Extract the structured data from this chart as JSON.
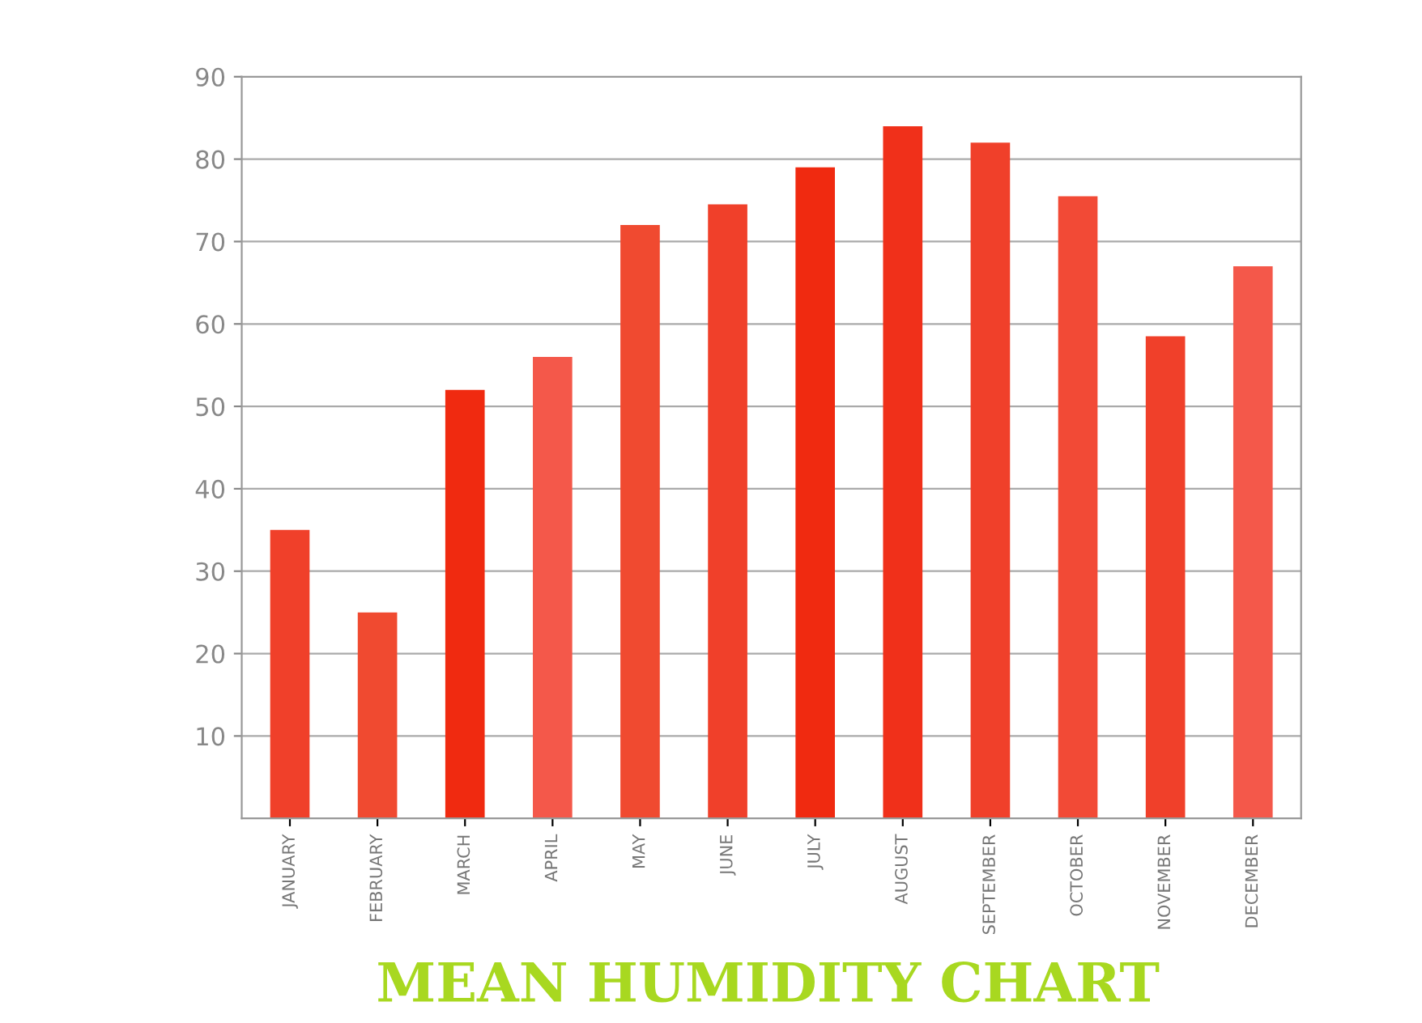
{
  "chart_data": {
    "type": "bar",
    "title": "MEAN HUMIDITY CHART",
    "categories": [
      "JANUARY",
      "FEBRUARY",
      "MARCH",
      "APRIL",
      "MAY",
      "JUNE",
      "JULY",
      "AUGUST",
      "SEPTEMBER",
      "OCTOBER",
      "NOVEMBER",
      "DECEMBER"
    ],
    "values": [
      35,
      25,
      52,
      56,
      72,
      74.5,
      79,
      84,
      82,
      75.5,
      58.5,
      67
    ],
    "colors": [
      "#f0402a",
      "#f04a30",
      "#f02a10",
      "#f4584a",
      "#f04a30",
      "#f0402a",
      "#f02a10",
      "#f0301a",
      "#f0402a",
      "#f24a36",
      "#f0402a",
      "#f4584a"
    ],
    "ylim": [
      0,
      90
    ],
    "yticks": [
      10,
      20,
      30,
      40,
      50,
      60,
      70,
      80,
      90
    ],
    "grid": "y"
  }
}
